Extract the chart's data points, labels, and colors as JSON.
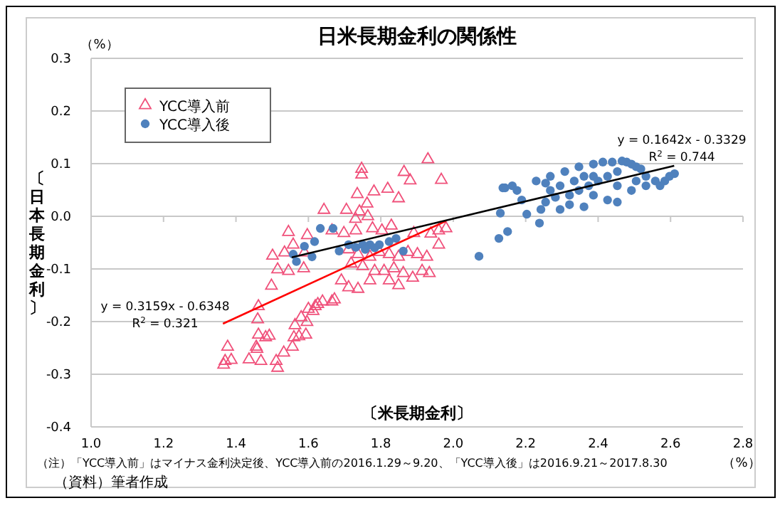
{
  "chart_data": {
    "type": "scatter",
    "title": "日米長期金利の関係性",
    "xlabel": "〔米長期金利〕",
    "ylabel": "〔日本長期金利〕",
    "xlim": [
      1.0,
      2.8
    ],
    "xticks": [
      {
        "value": 1,
        "label": "1.0"
      },
      1.2,
      1.4,
      1.6,
      1.8,
      {
        "value": 2,
        "label": "2.0"
      },
      2.2,
      2.4,
      2.6,
      2.8
    ],
    "ylim": [
      -0.4,
      0.3
    ],
    "yticks": [
      -0.4,
      -0.3,
      -0.2,
      -0.1,
      {
        "value": 0,
        "label": "0.0"
      },
      0.1,
      0.2,
      0.3
    ],
    "grid": "y",
    "legend": "top left",
    "series": [
      {
        "name": "YCC導入前",
        "type": "scatter",
        "marker": "triangle",
        "color": "#f0507a",
        "x": [
          1.93,
          1.747,
          1.747,
          1.864,
          1.881,
          1.967,
          1.819,
          1.781,
          1.735,
          1.849,
          1.762,
          1.741,
          1.764,
          1.73,
          1.643,
          1.705,
          1.665,
          1.698,
          1.731,
          1.777,
          1.803,
          1.829,
          1.891,
          1.938,
          1.96,
          1.98,
          1.96,
          1.545,
          1.597,
          1.558,
          1.501,
          1.534,
          1.589,
          1.515,
          1.545,
          1.587,
          1.498,
          1.711,
          1.737,
          1.77,
          1.796,
          1.823,
          1.849,
          1.875,
          1.901,
          1.927,
          1.718,
          1.75,
          1.783,
          1.809,
          1.836,
          1.862,
          1.888,
          1.914,
          1.934,
          1.691,
          1.711,
          1.737,
          1.665,
          1.639,
          1.619,
          1.613,
          1.823,
          1.849,
          1.77,
          1.462,
          1.46,
          1.462,
          1.482,
          1.492,
          1.456,
          1.458,
          1.377,
          1.37,
          1.366,
          1.387,
          1.436,
          1.469,
          1.511,
          1.515,
          1.532,
          1.556,
          1.56,
          1.574,
          1.593,
          1.563,
          1.58,
          1.596,
          1.6,
          1.626,
          1.672
        ],
        "values": [
          0.108,
          0.09,
          0.079,
          0.084,
          0.068,
          0.069,
          0.052,
          0.047,
          0.042,
          0.034,
          0.024,
          0.009,
          0,
          -0.005,
          0.012,
          0.012,
          -0.027,
          -0.032,
          -0.027,
          -0.023,
          -0.027,
          -0.018,
          -0.032,
          -0.033,
          -0.027,
          -0.023,
          -0.054,
          -0.03,
          -0.036,
          -0.054,
          -0.075,
          -0.069,
          -0.069,
          -0.101,
          -0.104,
          -0.099,
          -0.132,
          -0.063,
          -0.072,
          -0.077,
          -0.068,
          -0.072,
          -0.077,
          -0.068,
          -0.072,
          -0.077,
          -0.09,
          -0.095,
          -0.104,
          -0.104,
          -0.099,
          -0.108,
          -0.117,
          -0.104,
          -0.108,
          -0.122,
          -0.135,
          -0.138,
          -0.162,
          -0.162,
          -0.171,
          -0.18,
          -0.122,
          -0.131,
          -0.122,
          -0.171,
          -0.196,
          -0.225,
          -0.23,
          -0.227,
          -0.248,
          -0.252,
          -0.248,
          -0.275,
          -0.282,
          -0.273,
          -0.272,
          -0.275,
          -0.275,
          -0.288,
          -0.259,
          -0.248,
          -0.23,
          -0.228,
          -0.225,
          -0.207,
          -0.192,
          -0.201,
          -0.176,
          -0.167,
          -0.158
        ]
      },
      {
        "name": "YCC導入後",
        "type": "scatter",
        "marker": "circle",
        "color": "#4f81bd",
        "x": [
          1.558,
          1.567,
          1.589,
          1.617,
          1.633,
          1.668,
          1.61,
          1.685,
          1.711,
          1.731,
          1.75,
          1.77,
          1.796,
          1.823,
          1.842,
          1.862,
          1.757,
          1.783,
          2.071,
          2.126,
          2.15,
          2.238,
          2.13,
          2.143,
          2.137,
          2.163,
          2.203,
          2.242,
          2.255,
          2.282,
          2.321,
          2.347,
          2.374,
          2.4,
          2.426,
          2.453,
          2.479,
          2.505,
          2.532,
          2.558,
          2.584,
          2.611,
          2.597,
          2.229,
          2.268,
          2.308,
          2.347,
          2.387,
          2.413,
          2.439,
          2.466,
          2.492,
          2.518,
          2.295,
          2.334,
          2.361,
          2.321,
          2.387,
          2.426,
          2.453,
          2.492,
          2.532,
          2.453,
          2.361,
          2.295,
          2.189,
          2.176,
          2.268,
          2.505,
          2.571,
          2.387,
          2.255
        ],
        "values": [
          -0.072,
          -0.086,
          -0.057,
          -0.048,
          -0.023,
          -0.023,
          -0.077,
          -0.066,
          -0.054,
          -0.059,
          -0.054,
          -0.054,
          -0.054,
          -0.048,
          -0.042,
          -0.066,
          -0.063,
          -0.06,
          -0.076,
          -0.042,
          -0.029,
          -0.013,
          0.006,
          0.054,
          0.054,
          0.058,
          0.004,
          0.013,
          0.027,
          0.036,
          0.022,
          0.049,
          0.058,
          0.067,
          0.076,
          0.085,
          0.103,
          0.094,
          0.076,
          0.067,
          0.067,
          0.081,
          0.076,
          0.067,
          0.076,
          0.085,
          0.094,
          0.099,
          0.103,
          0.103,
          0.105,
          0.099,
          0.09,
          0.058,
          0.067,
          0.076,
          0.04,
          0.04,
          0.031,
          0.027,
          0.049,
          0.058,
          0.058,
          0.018,
          0.013,
          0.031,
          0.049,
          0.049,
          0.067,
          0.058,
          0.076,
          0.063
        ]
      },
      {
        "type": "line",
        "color": "#ff0000",
        "x": [
          1.364,
          1.98
        ],
        "values": [
          -0.204,
          -0.009
        ]
      },
      {
        "type": "line",
        "color": "#000000",
        "x": [
          1.554,
          2.61
        ],
        "values": [
          -0.078,
          0.096
        ]
      }
    ],
    "annotations": [
      "（%）",
      "（%）",
      "（注）「YCC導入前」はマイナス金利決定後、YCC導入前の2016.1.29～9.20、「YCC導入後」は2016.9.21～2017.8.30",
      "（資料）筆者作成",
      "y = 0.1642x - 0.3329",
      "R$^{2}$ = 0.744",
      "y = 0.3159x - 0.6348",
      "R$^{2}$ = 0.321"
    ]
  }
}
